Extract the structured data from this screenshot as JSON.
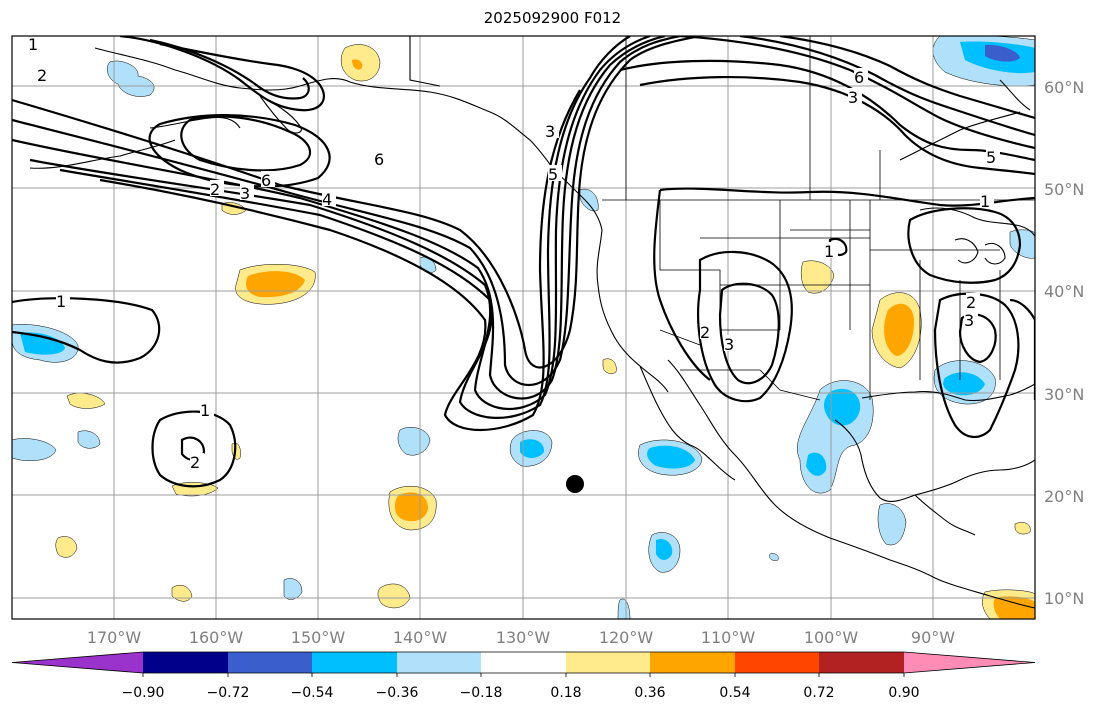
{
  "title": "2025092900 F012",
  "lat_labels": [
    "60°N",
    "50°N",
    "40°N",
    "30°N",
    "20°N",
    "10°N"
  ],
  "lon_labels": [
    "170°W",
    "160°W",
    "150°W",
    "140°W",
    "130°W",
    "120°W",
    "110°W",
    "100°W",
    "90°W"
  ],
  "colorbar": {
    "tick_labels": [
      "−0.90",
      "−0.72",
      "−0.54",
      "−0.36",
      "−0.18",
      "0.18",
      "0.36",
      "0.54",
      "0.72",
      "0.90"
    ],
    "colors": [
      "#9a33cc",
      "#00008b",
      "#3a5fcd",
      "#00bfff",
      "#b0e0fa",
      "#ffffff",
      "#ffea8c",
      "#ffa500",
      "#ff4500",
      "#b22222",
      "#ff8cb4"
    ]
  },
  "contour_labels": [
    "1",
    "2",
    "2",
    "3",
    "6",
    "4",
    "6",
    "3",
    "5",
    "1",
    "1",
    "2",
    "2",
    "3",
    "1",
    "2",
    "3",
    "6",
    "3",
    "5",
    "1"
  ],
  "marker": "storm-center-dot"
}
